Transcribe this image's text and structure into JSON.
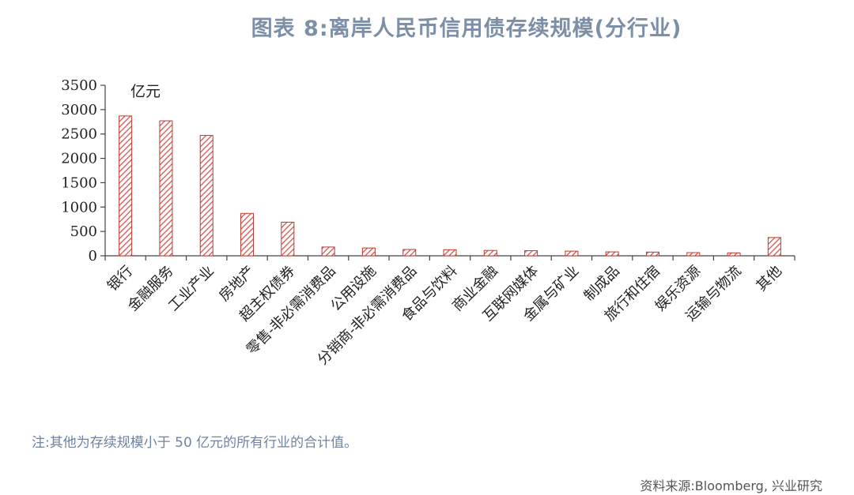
{
  "header": {
    "title": "图表 8:离岸人民币信用债存续规模(分行业)"
  },
  "footer": {
    "note": "注:其他为存续规模小于 50 亿元的所有行业的合计值。",
    "source": "资料来源:Bloomberg, 兴业研究"
  },
  "colors": {
    "bar_stroke": "#c0392b",
    "hatch": "#d9534f",
    "axis": "#444444",
    "title": "#7d8fa6"
  },
  "chart_data": {
    "type": "bar",
    "unit_label": "亿元",
    "ylim": [
      0,
      3500
    ],
    "yticks": [
      0,
      500,
      1000,
      1500,
      2000,
      2500,
      3000,
      3500
    ],
    "grid": false,
    "categories": [
      "银行",
      "金融服务",
      "工业产业",
      "房地产",
      "超主权债券",
      "零售-非必需消费品",
      "公用设施",
      "分销商-非必需消费品",
      "食品与饮料",
      "商业金融",
      "互联网媒体",
      "金属与矿业",
      "制成品",
      "旅行和住宿",
      "娱乐资源",
      "运输与物流",
      "其他"
    ],
    "values": [
      2870,
      2770,
      2470,
      870,
      690,
      180,
      160,
      130,
      125,
      110,
      105,
      95,
      80,
      75,
      65,
      60,
      375
    ]
  }
}
